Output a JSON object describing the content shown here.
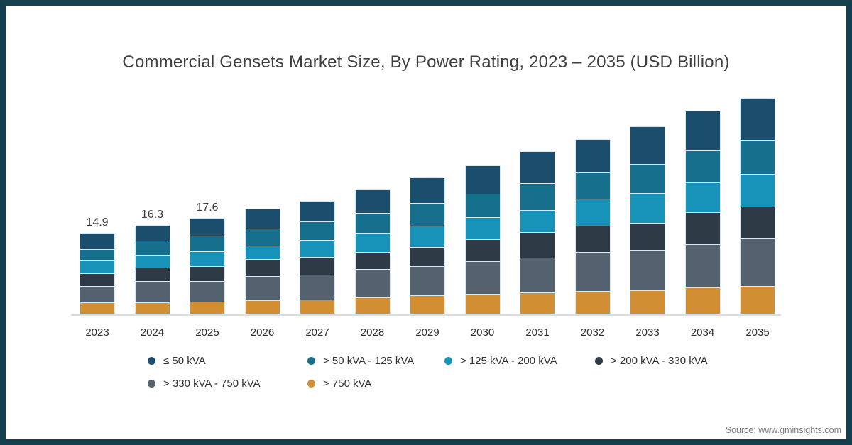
{
  "title": "Commercial Gensets Market Size, By Power Rating, 2023 – 2035 (USD Billion)",
  "source_note": "Source: www.gminsights.com",
  "frame_color": "#133f4e",
  "chart_data": {
    "type": "bar",
    "stacked": true,
    "title": "Commercial Gensets Market Size, By Power Rating, 2023 – 2035 (USD Billion)",
    "xlabel": "",
    "ylabel": "USD Billion",
    "grid": false,
    "legend_position": "bottom",
    "categories": [
      "2023",
      "2024",
      "2025",
      "2026",
      "2027",
      "2028",
      "2029",
      "2030",
      "2031",
      "2032",
      "2033",
      "2034",
      "2035"
    ],
    "series": [
      {
        "name": "≤ 50 kVA",
        "color": "#1b4e6d",
        "values": [
          3.1,
          3.0,
          3.4,
          3.8,
          3.9,
          4.4,
          4.8,
          5.3,
          6.0,
          6.3,
          7.0,
          7.4,
          7.8
        ]
      },
      {
        "name": "> 50 kVA - 125 kVA",
        "color": "#156f8d",
        "values": [
          2.1,
          2.6,
          2.8,
          3.1,
          3.4,
          3.6,
          4.1,
          4.3,
          4.9,
          4.8,
          5.3,
          5.8,
          6.2
        ]
      },
      {
        "name": "> 125 kVA - 200 kVA",
        "color": "#1793b9",
        "values": [
          2.3,
          2.3,
          2.7,
          2.5,
          3.1,
          3.6,
          3.9,
          4.0,
          4.0,
          4.9,
          5.4,
          5.4,
          6.0
        ]
      },
      {
        "name": "> 200 kVA - 330 kVA",
        "color": "#2e3a45",
        "values": [
          2.3,
          2.5,
          2.7,
          3.1,
          3.2,
          3.0,
          3.5,
          4.0,
          4.7,
          4.8,
          5.0,
          5.8,
          5.8
        ]
      },
      {
        "name": "> 330 kVA - 750 kVA",
        "color": "#53626e",
        "values": [
          3.1,
          3.8,
          3.8,
          4.4,
          4.5,
          5.2,
          5.4,
          6.0,
          6.3,
          7.1,
          7.3,
          7.9,
          8.7
        ]
      },
      {
        "name": "> 750 kVA",
        "color": "#d18e33",
        "values": [
          2.0,
          2.1,
          2.2,
          2.4,
          2.6,
          3.0,
          3.3,
          3.6,
          3.9,
          4.1,
          4.3,
          4.8,
          5.0
        ]
      }
    ],
    "stack_order_top_to_bottom": [
      "≤ 50 kVA",
      "> 50 kVA - 125 kVA",
      "> 125 kVA - 200 kVA",
      "> 200 kVA - 330 kVA",
      "> 330 kVA - 750 kVA",
      "> 750 kVA"
    ],
    "totals": [
      14.9,
      16.3,
      17.6,
      19.3,
      20.7,
      22.8,
      25.0,
      27.2,
      29.8,
      32.0,
      34.3,
      37.1,
      39.5
    ],
    "total_labels": [
      "14.9",
      "16.3",
      "17.6",
      "",
      "",
      "",
      "",
      "",
      "",
      "",
      "",
      "",
      ""
    ]
  }
}
